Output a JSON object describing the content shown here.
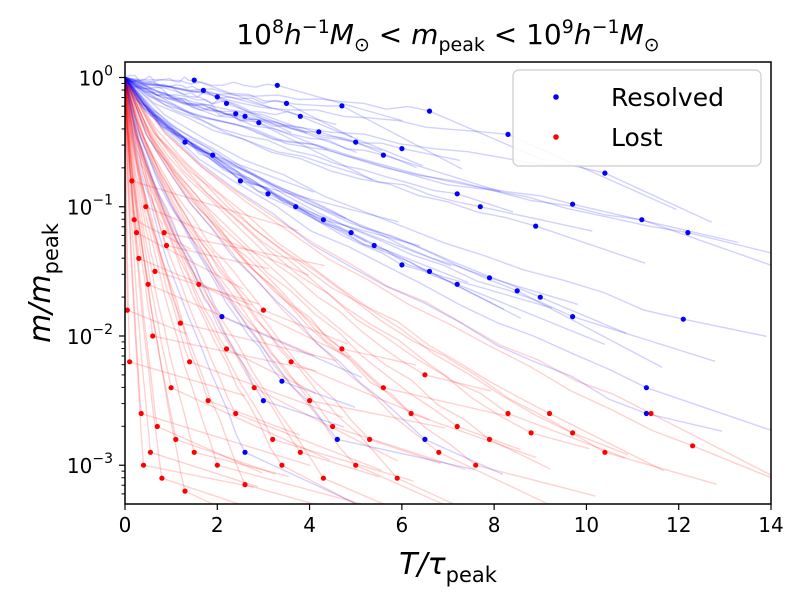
{
  "chart_data": {
    "type": "line",
    "title": {
      "base": "10",
      "exp1": "8",
      "h": "h",
      "exp2": "−1",
      "M": "M",
      "sun": "⊙",
      "lt": " < ",
      "m": "m",
      "sub": "peak",
      "base2": "10",
      "exp3": "9"
    },
    "xlabel": {
      "main": "T/τ",
      "sub": "peak"
    },
    "ylabel": {
      "main": "m/m",
      "sub": "peak"
    },
    "xlim": [
      0,
      14
    ],
    "ylim_log10": [
      -3.3,
      0.12
    ],
    "x_ticks": [
      0,
      2,
      4,
      6,
      8,
      10,
      12,
      14
    ],
    "x_tick_labels": [
      "0",
      "2",
      "4",
      "6",
      "8",
      "10",
      "12",
      "14"
    ],
    "y_ticks": [
      {
        "base": "10",
        "exp": "0",
        "value": 0
      },
      {
        "base": "10",
        "exp": "−1",
        "value": -1
      },
      {
        "base": "10",
        "exp": "−2",
        "value": -2
      },
      {
        "base": "10",
        "exp": "−3",
        "value": -3
      }
    ],
    "legend": {
      "position": "top-right",
      "entries": [
        {
          "label": "Resolved",
          "color": "#0000ff"
        },
        {
          "label": "Lost",
          "color": "#ff0000"
        }
      ]
    },
    "colors": {
      "resolved": "#0000ff",
      "lost": "#ff0000"
    },
    "series": [
      {
        "name": "Resolved",
        "color": "#0000ff",
        "note": "Blue tracks: mass fraction vs time since peak; dots mark final resolved values (log10 m/m_peak)",
        "endpoints": [
          [
            1.5,
            -0.02
          ],
          [
            1.7,
            -0.1
          ],
          [
            2.0,
            -0.15
          ],
          [
            2.2,
            -0.2
          ],
          [
            2.4,
            -0.28
          ],
          [
            2.6,
            -0.3
          ],
          [
            2.9,
            -0.35
          ],
          [
            3.3,
            -0.06
          ],
          [
            3.5,
            -0.2
          ],
          [
            3.8,
            -0.3
          ],
          [
            4.2,
            -0.42
          ],
          [
            4.7,
            -0.22
          ],
          [
            5.0,
            -0.5
          ],
          [
            5.6,
            -0.6
          ],
          [
            6.0,
            -0.55
          ],
          [
            6.6,
            -0.26
          ],
          [
            7.2,
            -0.9
          ],
          [
            7.7,
            -1.0
          ],
          [
            8.3,
            -0.44
          ],
          [
            8.9,
            -1.15
          ],
          [
            9.7,
            -0.98
          ],
          [
            10.4,
            -0.74
          ],
          [
            11.2,
            -1.1
          ],
          [
            12.2,
            -1.2
          ],
          [
            1.3,
            -0.5
          ],
          [
            1.9,
            -0.6
          ],
          [
            2.5,
            -0.8
          ],
          [
            3.1,
            -0.9
          ],
          [
            3.7,
            -1.0
          ],
          [
            4.3,
            -1.1
          ],
          [
            4.9,
            -1.2
          ],
          [
            5.4,
            -1.3
          ],
          [
            6.0,
            -1.45
          ],
          [
            6.6,
            -1.5
          ],
          [
            7.2,
            -1.6
          ],
          [
            7.9,
            -1.55
          ],
          [
            8.5,
            -1.65
          ],
          [
            9.0,
            -1.7
          ],
          [
            9.7,
            -1.85
          ],
          [
            12.1,
            -1.87
          ],
          [
            2.1,
            -1.85
          ],
          [
            3.0,
            -2.5
          ],
          [
            4.6,
            -2.8
          ],
          [
            6.5,
            -2.8
          ],
          [
            11.3,
            -2.4
          ],
          [
            11.3,
            -2.6
          ],
          [
            2.6,
            -2.9
          ],
          [
            3.4,
            -2.35
          ]
        ]
      },
      {
        "name": "Lost",
        "color": "#ff0000",
        "note": "Red tracks: mass fraction vs time since peak; dots mark the values where subhalos were lost (log10 m/m_peak)",
        "endpoints": [
          [
            0.05,
            -1.8
          ],
          [
            0.1,
            -2.2
          ],
          [
            0.2,
            -1.1
          ],
          [
            0.3,
            -1.4
          ],
          [
            0.35,
            -2.6
          ],
          [
            0.4,
            -3.0
          ],
          [
            0.5,
            -1.6
          ],
          [
            0.55,
            -2.9
          ],
          [
            0.6,
            -2.0
          ],
          [
            0.7,
            -2.7
          ],
          [
            0.8,
            -3.1
          ],
          [
            0.9,
            -1.3
          ],
          [
            1.0,
            -2.4
          ],
          [
            1.1,
            -2.8
          ],
          [
            1.2,
            -1.9
          ],
          [
            1.3,
            -3.2
          ],
          [
            1.4,
            -2.2
          ],
          [
            1.5,
            -2.9
          ],
          [
            1.6,
            -1.6
          ],
          [
            1.8,
            -2.5
          ],
          [
            2.0,
            -3.0
          ],
          [
            2.2,
            -2.1
          ],
          [
            2.4,
            -2.6
          ],
          [
            2.6,
            -3.15
          ],
          [
            2.8,
            -2.4
          ],
          [
            3.0,
            -1.8
          ],
          [
            3.2,
            -2.8
          ],
          [
            3.4,
            -3.0
          ],
          [
            3.6,
            -2.2
          ],
          [
            3.8,
            -2.9
          ],
          [
            4.0,
            -2.5
          ],
          [
            4.3,
            -3.1
          ],
          [
            4.5,
            -2.7
          ],
          [
            4.7,
            -2.1
          ],
          [
            5.0,
            -3.0
          ],
          [
            5.3,
            -2.8
          ],
          [
            5.6,
            -2.4
          ],
          [
            5.9,
            -3.1
          ],
          [
            6.2,
            -2.6
          ],
          [
            6.5,
            -2.3
          ],
          [
            6.8,
            -2.9
          ],
          [
            7.2,
            -2.7
          ],
          [
            7.6,
            -3.0
          ],
          [
            7.9,
            -2.8
          ],
          [
            8.3,
            -2.6
          ],
          [
            8.8,
            -2.75
          ],
          [
            9.2,
            -2.6
          ],
          [
            9.7,
            -2.75
          ],
          [
            10.4,
            -2.9
          ],
          [
            11.4,
            -2.6
          ],
          [
            12.3,
            -2.85
          ],
          [
            0.15,
            -0.8
          ],
          [
            0.25,
            -1.2
          ],
          [
            0.45,
            -1.0
          ],
          [
            0.65,
            -1.5
          ],
          [
            0.85,
            -1.2
          ]
        ]
      }
    ]
  }
}
